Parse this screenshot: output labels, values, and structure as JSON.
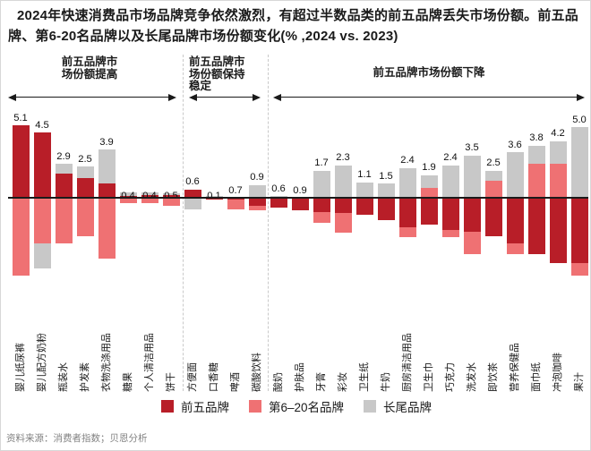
{
  "title": "2024年快速消费品市场品牌竞争依然激烈，有超过半数品类的前五品牌丢失市场份额。前五品牌、第6-20名品牌以及长尾品牌市场份额变化(% ,2024 vs. 2023)",
  "sections": [
    {
      "label": "前五品牌市场份额提高"
    },
    {
      "label": "前五品牌市场份额保持稳定"
    },
    {
      "label": "前五品牌市场份额下降"
    }
  ],
  "legend": [
    {
      "label": "前五品牌",
      "color": "#b81e28"
    },
    {
      "label": "第6–20名品牌",
      "color": "#ef7173"
    },
    {
      "label": "长尾品牌",
      "color": "#c8c8c8"
    }
  ],
  "source": "资料来源：消费者指数；贝恩分析",
  "colors": {
    "top5": "#b81e28",
    "mid": "#ef7173",
    "longtail": "#c8c8c8",
    "axis": "#1a1a1a"
  },
  "chart_data": {
    "type": "bar",
    "stacked": true,
    "diverging": true,
    "unit": "%",
    "title": "前五品牌、第6-20名品牌以及长尾品牌市场份额变化(% ,2024 vs. 2023)",
    "xlabel": "",
    "ylabel": "",
    "ylim": [
      -5.6,
      5.6
    ],
    "grid": false,
    "legend_position": "bottom",
    "categories": [
      "婴儿纸尿裤",
      "婴儿配方奶粉",
      "瓶装水",
      "护发素",
      "衣物洗涤用品",
      "糖果",
      "个人清洁用品",
      "饼干",
      "方便面",
      "口香糖",
      "啤酒",
      "碳酸饮料",
      "酸奶",
      "护肤品",
      "牙膏",
      "彩妆",
      "卫生纸",
      "牛奶",
      "厨房清洁用品",
      "卫生巾",
      "巧克力",
      "洗发水",
      "即饮茶",
      "营养保健品",
      "面巾纸",
      "冲泡咖啡",
      "果汁"
    ],
    "values": [
      5.1,
      4.5,
      2.9,
      2.5,
      3.9,
      0.4,
      0.4,
      0.5,
      0.6,
      0.1,
      0.7,
      0.9,
      0.6,
      0.9,
      1.7,
      2.3,
      1.1,
      1.5,
      2.4,
      1.9,
      2.4,
      3.5,
      2.5,
      3.6,
      3.8,
      4.2,
      5.0
    ],
    "series": [
      {
        "name": "前五品牌",
        "values": [
          5.1,
          4.6,
          1.7,
          1.4,
          1.0,
          0.1,
          0.2,
          0.2,
          0.6,
          -0.1,
          -0.1,
          -0.6,
          -0.7,
          -0.9,
          -1.0,
          -1.1,
          -1.2,
          -1.6,
          -2.1,
          -1.9,
          -2.3,
          -2.4,
          -2.7,
          -3.2,
          -4.0,
          -4.6,
          -4.6
        ]
      },
      {
        "name": "第6–20名品牌",
        "values": [
          -5.5,
          -3.2,
          -3.2,
          -2.7,
          -4.3,
          -0.4,
          -0.4,
          -0.6,
          0,
          0,
          -0.7,
          -0.3,
          0,
          0,
          -0.8,
          -1.4,
          0,
          0,
          -0.7,
          0.7,
          -0.5,
          -1.6,
          1.2,
          -0.8,
          2.4,
          2.4,
          -0.9
        ]
      },
      {
        "name": "长尾品牌",
        "values": [
          0,
          -1.8,
          0.7,
          0.8,
          2.4,
          0.3,
          0.2,
          0.1,
          -0.8,
          0.1,
          0,
          0.9,
          0.1,
          0,
          1.9,
          2.3,
          1.1,
          1.0,
          2.1,
          0.9,
          2.3,
          3.0,
          0.7,
          3.2,
          1.3,
          1.6,
          5.0
        ]
      }
    ],
    "section_spans": [
      {
        "label": "前五品牌市场份额提高",
        "from": 0,
        "to": 7
      },
      {
        "label": "前五品牌市场份额保持稳定",
        "from": 8,
        "to": 11
      },
      {
        "label": "前五品牌市场份额下降",
        "from": 12,
        "to": 26
      }
    ]
  }
}
